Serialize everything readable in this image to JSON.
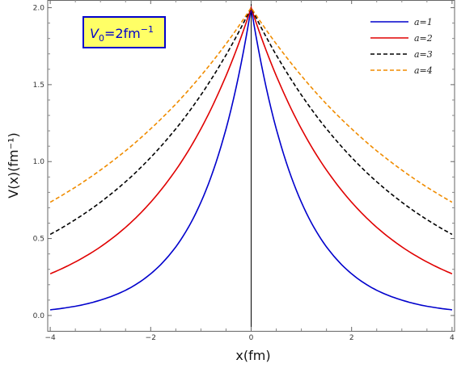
{
  "chart_data": {
    "type": "line",
    "xlabel": "x(fm)",
    "ylabel": "V(x)(fm⁻¹)",
    "xlim": [
      -4.05,
      4.05
    ],
    "ylim": [
      -0.1,
      2.05
    ],
    "xticks": [
      -4,
      -2,
      0,
      2,
      4
    ],
    "yticks": [
      0.0,
      0.5,
      1.0,
      1.5,
      2.0
    ],
    "xtick_labels": [
      "−4",
      "−2",
      "0",
      "2",
      "4"
    ],
    "ytick_labels": [
      "0.0",
      "0.5",
      "1.0",
      "1.5",
      "2.0"
    ],
    "grid": false,
    "legend_position": "top-right",
    "annotation": {
      "V": "V",
      "sub": "0",
      "rest": "=2fm",
      "sup": "−1"
    },
    "x": [
      -4,
      -3.5,
      -3,
      -2.5,
      -2,
      -1.5,
      -1,
      -0.5,
      0,
      0.5,
      1,
      1.5,
      2,
      2.5,
      3,
      3.5,
      4
    ],
    "series": [
      {
        "name": "a=1",
        "color": "#0000cc",
        "dash": "solid",
        "values": [
          0.037,
          0.06,
          0.1,
          0.164,
          0.271,
          0.446,
          0.736,
          1.213,
          2.0,
          1.213,
          0.736,
          0.446,
          0.271,
          0.164,
          0.1,
          0.06,
          0.037
        ]
      },
      {
        "name": "a=2",
        "color": "#e00000",
        "dash": "solid",
        "values": [
          0.271,
          0.348,
          0.446,
          0.573,
          0.736,
          0.945,
          1.213,
          1.558,
          2.0,
          1.558,
          1.213,
          0.945,
          0.736,
          0.573,
          0.446,
          0.348,
          0.271
        ]
      },
      {
        "name": "a=3",
        "color": "#000000",
        "dash": "dashed",
        "values": [
          0.527,
          0.623,
          0.736,
          0.869,
          1.027,
          1.213,
          1.433,
          1.693,
          2.0,
          1.693,
          1.433,
          1.213,
          1.027,
          0.869,
          0.736,
          0.623,
          0.527
        ]
      },
      {
        "name": "a=4",
        "color": "#f08c00",
        "dash": "dashed",
        "values": [
          0.736,
          0.834,
          0.945,
          1.07,
          1.213,
          1.374,
          1.558,
          1.765,
          2.0,
          1.765,
          1.558,
          1.374,
          1.213,
          1.07,
          0.945,
          0.834,
          0.736
        ]
      }
    ]
  }
}
